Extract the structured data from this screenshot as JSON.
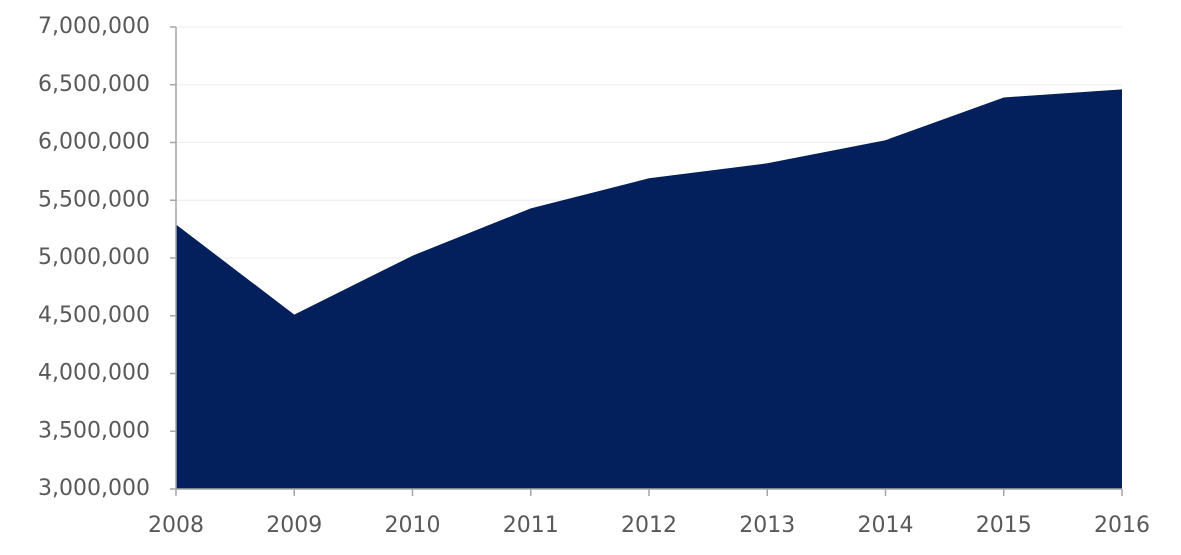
{
  "chart_data": {
    "type": "area",
    "x": [
      2008,
      2009,
      2010,
      2011,
      2012,
      2013,
      2014,
      2015,
      2016
    ],
    "values": [
      5290000,
      4510000,
      5020000,
      5430000,
      5690000,
      5820000,
      6020000,
      6390000,
      6460000
    ],
    "color": "#031f5c",
    "xlim": [
      2008,
      2016
    ],
    "xticks": [
      2008,
      2009,
      2010,
      2011,
      2012,
      2013,
      2014,
      2015,
      2016
    ],
    "ylim": [
      3000000,
      7000000
    ],
    "yticks": [
      {
        "value": 3000000,
        "label": "3,000,000"
      },
      {
        "value": 3500000,
        "label": "3,500,000"
      },
      {
        "value": 4000000,
        "label": "4,000,000"
      },
      {
        "value": 4500000,
        "label": "4,500,000"
      },
      {
        "value": 5000000,
        "label": "5,000,000"
      },
      {
        "value": 5500000,
        "label": "5,500,000"
      },
      {
        "value": 6000000,
        "label": "6,000,000"
      },
      {
        "value": 6500000,
        "label": "6,500,000"
      },
      {
        "value": 7000000,
        "label": "7,000,000"
      }
    ],
    "grid": true
  }
}
